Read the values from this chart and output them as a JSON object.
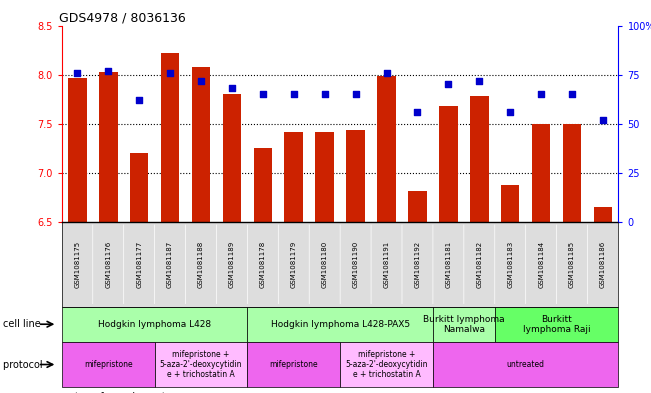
{
  "title": "GDS4978 / 8036136",
  "samples": [
    "GSM1081175",
    "GSM1081176",
    "GSM1081177",
    "GSM1081187",
    "GSM1081188",
    "GSM1081189",
    "GSM1081178",
    "GSM1081179",
    "GSM1081180",
    "GSM1081190",
    "GSM1081191",
    "GSM1081192",
    "GSM1081181",
    "GSM1081182",
    "GSM1081183",
    "GSM1081184",
    "GSM1081185",
    "GSM1081186"
  ],
  "bar_values": [
    7.97,
    8.03,
    7.2,
    8.22,
    8.08,
    7.8,
    7.25,
    7.42,
    7.42,
    7.44,
    7.99,
    6.82,
    7.68,
    7.78,
    6.88,
    7.5,
    7.5,
    6.65
  ],
  "dot_values": [
    76,
    77,
    62,
    76,
    72,
    68,
    65,
    65,
    65,
    65,
    76,
    56,
    70,
    72,
    56,
    65,
    65,
    52
  ],
  "ylim_left": [
    6.5,
    8.5
  ],
  "ylim_right": [
    0,
    100
  ],
  "yticks_left": [
    6.5,
    7.0,
    7.5,
    8.0,
    8.5
  ],
  "yticks_right": [
    0,
    25,
    50,
    75,
    100
  ],
  "bar_color": "#cc2200",
  "dot_color": "#0000cc",
  "cell_line_groups": [
    {
      "label": "Hodgkin lymphoma L428",
      "start": 0,
      "end": 5,
      "color": "#aaffaa"
    },
    {
      "label": "Hodgkin lymphoma L428-PAX5",
      "start": 6,
      "end": 11,
      "color": "#aaffaa"
    },
    {
      "label": "Burkitt lymphoma\nNamalwa",
      "start": 12,
      "end": 13,
      "color": "#aaffaa"
    },
    {
      "label": "Burkitt\nlymphoma Raji",
      "start": 14,
      "end": 17,
      "color": "#66ff66"
    }
  ],
  "protocol_groups": [
    {
      "label": "mifepristone",
      "start": 0,
      "end": 2,
      "color": "#ee66ee"
    },
    {
      "label": "mifepristone +\n5-aza-2'-deoxycytidin\ne + trichostatin A",
      "start": 3,
      "end": 5,
      "color": "#ffbbff"
    },
    {
      "label": "mifepristone",
      "start": 6,
      "end": 8,
      "color": "#ee66ee"
    },
    {
      "label": "mifepristone +\n5-aza-2'-deoxycytidin\ne + trichostatin A",
      "start": 9,
      "end": 11,
      "color": "#ffbbff"
    },
    {
      "label": "untreated",
      "start": 12,
      "end": 17,
      "color": "#ee66ee"
    }
  ],
  "grid_yticks": [
    7.0,
    7.5,
    8.0
  ],
  "bar_width": 0.6,
  "dot_size": 20
}
